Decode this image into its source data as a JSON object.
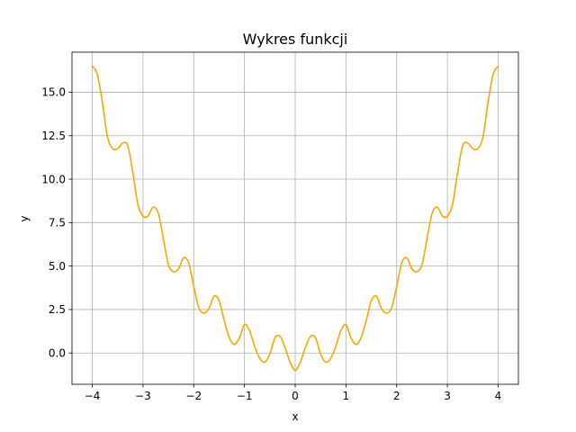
{
  "chart_data": {
    "type": "line",
    "title": "Wykres funkcji",
    "xlabel": "x",
    "ylabel": "y",
    "xlim": [
      -4.4,
      4.4
    ],
    "ylim": [
      -1.8,
      17.3
    ],
    "xticks": [
      -4,
      -3,
      -2,
      -1,
      0,
      1,
      2,
      3,
      4
    ],
    "xtick_labels": [
      "−4",
      "−3",
      "−2",
      "−1",
      "0",
      "1",
      "2",
      "3",
      "4"
    ],
    "yticks": [
      0.0,
      2.5,
      5.0,
      7.5,
      10.0,
      12.5,
      15.0
    ],
    "ytick_labels": [
      "0.0",
      "2.5",
      "5.0",
      "7.5",
      "10.0",
      "12.5",
      "15.0"
    ],
    "grid": true,
    "line_color": "#ffa500",
    "series": [
      {
        "x": [
          -4.0,
          -3.9,
          -3.8,
          -3.7,
          -3.6,
          -3.5,
          -3.4,
          -3.3,
          -3.2,
          -3.1,
          -3.0,
          -2.9,
          -2.8,
          -2.7,
          -2.6,
          -2.5,
          -2.4,
          -2.3,
          -2.2,
          -2.1,
          -2.0,
          -1.9,
          -1.8,
          -1.7,
          -1.6,
          -1.5,
          -1.4,
          -1.3,
          -1.2,
          -1.1,
          -1.0,
          -0.9,
          -0.8,
          -0.7,
          -0.6,
          -0.5,
          -0.4,
          -0.3,
          -0.2,
          -0.1,
          0.0,
          0.1,
          0.2,
          0.3,
          0.4,
          0.5,
          0.6,
          0.7,
          0.8,
          0.9,
          1.0,
          1.1,
          1.2,
          1.3,
          1.4,
          1.5,
          1.6,
          1.7,
          1.8,
          1.9,
          2.0,
          2.1,
          2.2,
          2.3,
          2.4,
          2.5,
          2.6,
          2.7,
          2.8,
          2.9,
          3.0,
          3.1,
          3.2,
          3.3,
          3.4,
          3.5,
          3.6,
          3.7,
          3.8,
          3.9,
          4.0
        ],
        "y": [
          16.5,
          16.01,
          14.39,
          12.42,
          11.75,
          11.75,
          12.08,
          11.91,
          10.36,
          8.53,
          7.87,
          7.88,
          8.39,
          8.04,
          6.6,
          5.09,
          4.68,
          4.84,
          5.47,
          5.18,
          3.84,
          2.6,
          2.29,
          2.56,
          3.27,
          3.01,
          1.87,
          0.89,
          0.49,
          0.87,
          1.64,
          1.29,
          0.38,
          -0.31,
          -0.53,
          -0.05,
          0.87,
          0.96,
          0.31,
          -0.54,
          -1.0,
          -0.54,
          0.31,
          0.96,
          0.87,
          -0.05,
          -0.53,
          -0.31,
          0.38,
          1.29,
          1.64,
          0.87,
          0.49,
          0.89,
          1.87,
          3.01,
          3.27,
          2.56,
          2.29,
          2.6,
          3.84,
          5.18,
          5.47,
          4.84,
          4.68,
          5.09,
          6.6,
          8.04,
          8.39,
          7.88,
          7.87,
          8.53,
          10.36,
          11.91,
          12.08,
          11.75,
          11.75,
          12.42,
          14.39,
          16.01,
          16.5
        ]
      }
    ]
  }
}
